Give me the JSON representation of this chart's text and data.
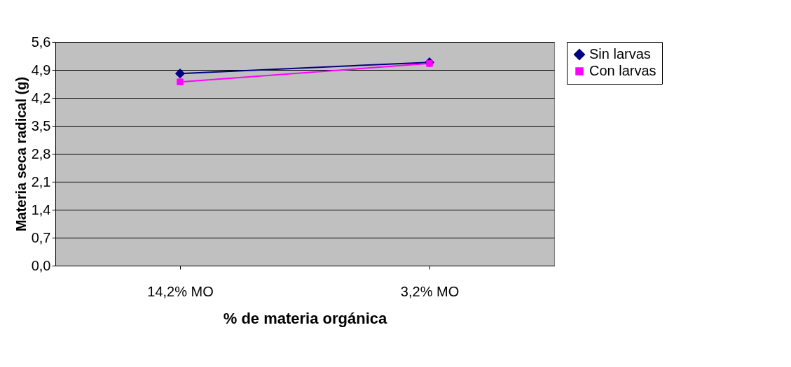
{
  "chart_data": {
    "type": "line",
    "xlabel": "% de materia orgánica",
    "ylabel": "Materia seca radical (g)",
    "categories": [
      "14,2% MO",
      "3,2% MO"
    ],
    "series": [
      {
        "name": "Sin larvas",
        "color": "#000080",
        "marker": "diamond",
        "values": [
          4.81,
          5.09
        ]
      },
      {
        "name": "Con larvas",
        "color": "#ff00ff",
        "marker": "square",
        "values": [
          4.6,
          5.06
        ]
      }
    ],
    "ylim": [
      0,
      5.6
    ],
    "yticks": [
      {
        "value": 0,
        "label": "0,0"
      },
      {
        "value": 0.7,
        "label": "0,7"
      },
      {
        "value": 1.4,
        "label": "1,4"
      },
      {
        "value": 2.1,
        "label": "2,1"
      },
      {
        "value": 2.8,
        "label": "2,8"
      },
      {
        "value": 3.5,
        "label": "3,5"
      },
      {
        "value": 4.2,
        "label": "4,2"
      },
      {
        "value": 4.9,
        "label": "4,9"
      },
      {
        "value": 5.6,
        "label": "5,6"
      }
    ],
    "grid": "y",
    "legend": "right",
    "line_style": "solid"
  }
}
